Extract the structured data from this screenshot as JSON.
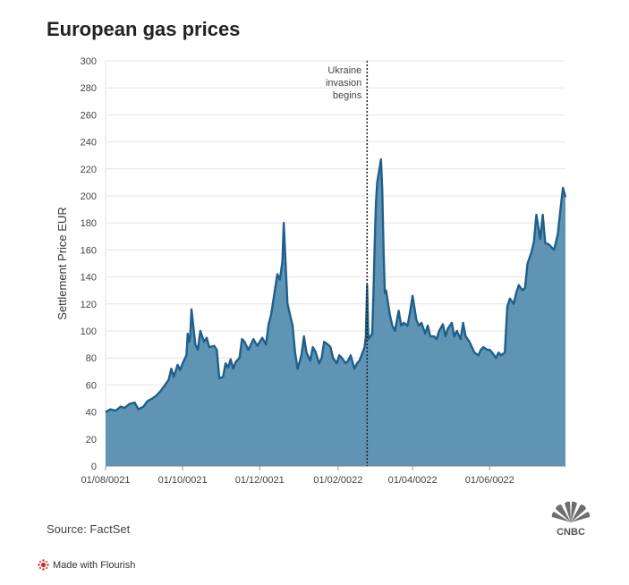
{
  "title": "European gas prices",
  "source": "Source: FactSet",
  "flourish_label": "Made with Flourish",
  "cnbc_logo_text": "CNBC",
  "colors": {
    "area": "#5f94b4",
    "line": "#1f5f8b",
    "grid": "#e4e4e4",
    "annotation": "#222222"
  },
  "chart_data": {
    "type": "area",
    "title": "European gas prices",
    "ylabel": "Settlement Price EUR",
    "xlabel": "",
    "ylim": [
      0,
      300
    ],
    "yticks": [
      0,
      20,
      40,
      60,
      80,
      100,
      120,
      140,
      160,
      180,
      200,
      220,
      240,
      260,
      280,
      300
    ],
    "xlim": [
      "2021-08-01",
      "2022-07-31"
    ],
    "xticks": [
      {
        "date": "2021-08-01",
        "label": "01/08/0021"
      },
      {
        "date": "2021-10-01",
        "label": "01/10/0021"
      },
      {
        "date": "2021-12-01",
        "label": "01/12/0021"
      },
      {
        "date": "2022-02-01",
        "label": "01/02/0022"
      },
      {
        "date": "2022-04-01",
        "label": "01/04/0022"
      },
      {
        "date": "2022-06-01",
        "label": "01/06/0022"
      }
    ],
    "grid": true,
    "annotation": {
      "date": "2022-02-24",
      "text": [
        "Ukraine",
        "invasion",
        "begins"
      ]
    },
    "series": [
      {
        "values": [
          [
            "2021-08-01",
            40
          ],
          [
            "2021-08-05",
            42
          ],
          [
            "2021-08-09",
            41
          ],
          [
            "2021-08-13",
            44
          ],
          [
            "2021-08-16",
            43
          ],
          [
            "2021-08-20",
            46
          ],
          [
            "2021-08-24",
            47
          ],
          [
            "2021-08-27",
            42
          ],
          [
            "2021-08-31",
            44
          ],
          [
            "2021-09-03",
            48
          ],
          [
            "2021-09-07",
            50
          ],
          [
            "2021-09-10",
            52
          ],
          [
            "2021-09-14",
            56
          ],
          [
            "2021-09-17",
            60
          ],
          [
            "2021-09-20",
            64
          ],
          [
            "2021-09-22",
            72
          ],
          [
            "2021-09-24",
            66
          ],
          [
            "2021-09-27",
            75
          ],
          [
            "2021-09-29",
            71
          ],
          [
            "2021-10-01",
            76
          ],
          [
            "2021-10-04",
            82
          ],
          [
            "2021-10-05",
            98
          ],
          [
            "2021-10-06",
            92
          ],
          [
            "2021-10-07",
            96
          ],
          [
            "2021-10-08",
            116
          ],
          [
            "2021-10-11",
            90
          ],
          [
            "2021-10-13",
            86
          ],
          [
            "2021-10-15",
            100
          ],
          [
            "2021-10-18",
            92
          ],
          [
            "2021-10-20",
            95
          ],
          [
            "2021-10-22",
            88
          ],
          [
            "2021-10-26",
            89
          ],
          [
            "2021-10-28",
            86
          ],
          [
            "2021-10-30",
            65
          ],
          [
            "2021-11-02",
            66
          ],
          [
            "2021-11-04",
            76
          ],
          [
            "2021-11-06",
            73
          ],
          [
            "2021-11-08",
            79
          ],
          [
            "2021-11-10",
            72
          ],
          [
            "2021-11-12",
            77
          ],
          [
            "2021-11-15",
            80
          ],
          [
            "2021-11-17",
            94
          ],
          [
            "2021-11-19",
            92
          ],
          [
            "2021-11-22",
            86
          ],
          [
            "2021-11-24",
            90
          ],
          [
            "2021-11-26",
            94
          ],
          [
            "2021-11-29",
            89
          ],
          [
            "2021-12-01",
            92
          ],
          [
            "2021-12-03",
            95
          ],
          [
            "2021-12-06",
            90
          ],
          [
            "2021-12-08",
            105
          ],
          [
            "2021-12-10",
            112
          ],
          [
            "2021-12-13",
            130
          ],
          [
            "2021-12-15",
            142
          ],
          [
            "2021-12-17",
            138
          ],
          [
            "2021-12-19",
            152
          ],
          [
            "2021-12-20",
            180
          ],
          [
            "2021-12-21",
            160
          ],
          [
            "2021-12-23",
            120
          ],
          [
            "2021-12-27",
            104
          ],
          [
            "2021-12-29",
            84
          ],
          [
            "2021-12-31",
            72
          ],
          [
            "2022-01-03",
            82
          ],
          [
            "2022-01-05",
            96
          ],
          [
            "2022-01-07",
            84
          ],
          [
            "2022-01-10",
            78
          ],
          [
            "2022-01-12",
            88
          ],
          [
            "2022-01-14",
            85
          ],
          [
            "2022-01-17",
            76
          ],
          [
            "2022-01-19",
            80
          ],
          [
            "2022-01-21",
            92
          ],
          [
            "2022-01-24",
            90
          ],
          [
            "2022-01-26",
            88
          ],
          [
            "2022-01-28",
            80
          ],
          [
            "2022-01-31",
            76
          ],
          [
            "2022-02-02",
            82
          ],
          [
            "2022-02-04",
            80
          ],
          [
            "2022-02-07",
            76
          ],
          [
            "2022-02-09",
            78
          ],
          [
            "2022-02-11",
            82
          ],
          [
            "2022-02-14",
            72
          ],
          [
            "2022-02-16",
            76
          ],
          [
            "2022-02-18",
            78
          ],
          [
            "2022-02-22",
            88
          ],
          [
            "2022-02-23",
            96
          ],
          [
            "2022-02-24",
            134
          ],
          [
            "2022-02-25",
            94
          ],
          [
            "2022-02-28",
            98
          ],
          [
            "2022-03-01",
            128
          ],
          [
            "2022-03-02",
            165
          ],
          [
            "2022-03-03",
            195
          ],
          [
            "2022-03-04",
            210
          ],
          [
            "2022-03-07",
            227
          ],
          [
            "2022-03-08",
            205
          ],
          [
            "2022-03-09",
            160
          ],
          [
            "2022-03-10",
            128
          ],
          [
            "2022-03-11",
            130
          ],
          [
            "2022-03-14",
            112
          ],
          [
            "2022-03-16",
            104
          ],
          [
            "2022-03-18",
            100
          ],
          [
            "2022-03-21",
            115
          ],
          [
            "2022-03-23",
            104
          ],
          [
            "2022-03-25",
            106
          ],
          [
            "2022-03-28",
            104
          ],
          [
            "2022-03-30",
            114
          ],
          [
            "2022-04-01",
            126
          ],
          [
            "2022-04-04",
            108
          ],
          [
            "2022-04-06",
            104
          ],
          [
            "2022-04-08",
            106
          ],
          [
            "2022-04-11",
            98
          ],
          [
            "2022-04-13",
            104
          ],
          [
            "2022-04-15",
            96
          ],
          [
            "2022-04-18",
            96
          ],
          [
            "2022-04-20",
            94
          ],
          [
            "2022-04-22",
            100
          ],
          [
            "2022-04-25",
            105
          ],
          [
            "2022-04-27",
            96
          ],
          [
            "2022-04-29",
            102
          ],
          [
            "2022-05-02",
            106
          ],
          [
            "2022-05-04",
            96
          ],
          [
            "2022-05-06",
            100
          ],
          [
            "2022-05-09",
            94
          ],
          [
            "2022-05-11",
            106
          ],
          [
            "2022-05-13",
            96
          ],
          [
            "2022-05-16",
            92
          ],
          [
            "2022-05-18",
            88
          ],
          [
            "2022-05-20",
            84
          ],
          [
            "2022-05-23",
            82
          ],
          [
            "2022-05-25",
            86
          ],
          [
            "2022-05-27",
            88
          ],
          [
            "2022-05-30",
            86
          ],
          [
            "2022-06-01",
            86
          ],
          [
            "2022-06-03",
            84
          ],
          [
            "2022-06-06",
            80
          ],
          [
            "2022-06-08",
            84
          ],
          [
            "2022-06-10",
            82
          ],
          [
            "2022-06-13",
            84
          ],
          [
            "2022-06-15",
            118
          ],
          [
            "2022-06-17",
            124
          ],
          [
            "2022-06-20",
            120
          ],
          [
            "2022-06-22",
            128
          ],
          [
            "2022-06-24",
            134
          ],
          [
            "2022-06-27",
            130
          ],
          [
            "2022-06-29",
            132
          ],
          [
            "2022-07-01",
            150
          ],
          [
            "2022-07-04",
            158
          ],
          [
            "2022-07-06",
            166
          ],
          [
            "2022-07-08",
            186
          ],
          [
            "2022-07-11",
            168
          ],
          [
            "2022-07-13",
            186
          ],
          [
            "2022-07-15",
            165
          ],
          [
            "2022-07-18",
            164
          ],
          [
            "2022-07-20",
            162
          ],
          [
            "2022-07-22",
            160
          ],
          [
            "2022-07-25",
            172
          ],
          [
            "2022-07-27",
            190
          ],
          [
            "2022-07-29",
            206
          ],
          [
            "2022-07-31",
            199
          ]
        ]
      }
    ]
  }
}
